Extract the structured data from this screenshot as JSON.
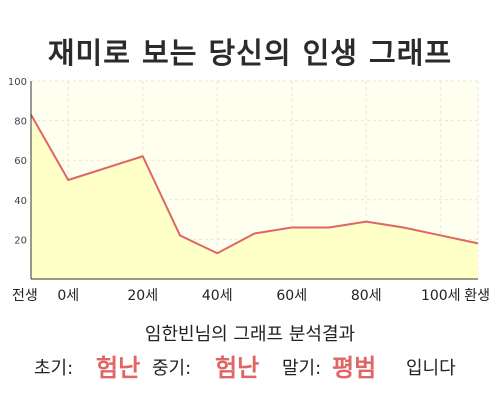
{
  "title": "재미로 보는 당신의 인생 그래프",
  "subtitle": "임한빈님의 그래프 분석결과",
  "phases": {
    "early_label": "초기:",
    "early_value": "험난",
    "mid_label": "중기:",
    "mid_value": "험난",
    "late_label": "말기:",
    "late_value": "평범",
    "suffix": "입니다"
  },
  "colors": {
    "line": "#e06666",
    "fill": "#ffffc8",
    "plot_bg": "#fffff0",
    "accent_text": "#e06666"
  },
  "chart_data": {
    "type": "area",
    "title": "",
    "xlabel": "",
    "ylabel": "",
    "ylim": [
      0,
      100
    ],
    "yticks": [
      20,
      40,
      60,
      80,
      100
    ],
    "ytick_labels": [
      "20",
      "40",
      "60",
      "80",
      "100"
    ],
    "xticks": [
      -10,
      0,
      20,
      40,
      60,
      80,
      100,
      110
    ],
    "xtick_labels": [
      "전생",
      "0세",
      "20세",
      "40세",
      "60세",
      "80세",
      "100세",
      "환생"
    ],
    "xlim": [
      -10,
      110
    ],
    "grid": true,
    "series": [
      {
        "x": [
          -10,
          0,
          20,
          30,
          40,
          50,
          60,
          70,
          80,
          90,
          100,
          110
        ],
        "values": [
          83,
          50,
          62,
          22,
          13,
          23,
          26,
          26,
          29,
          26,
          22,
          18
        ]
      }
    ]
  }
}
